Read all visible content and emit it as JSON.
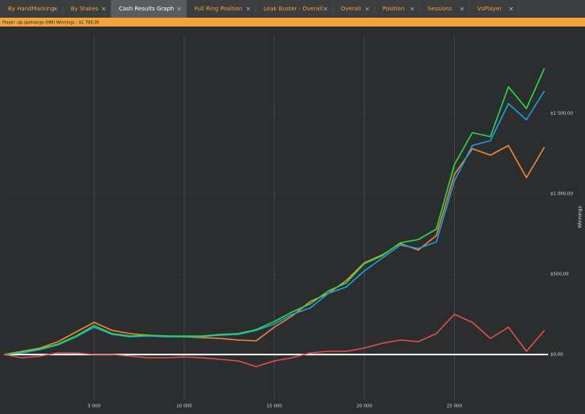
{
  "tabs": [
    "By HandMarking",
    "By Stakes",
    "Cash Results Graph",
    "Full Ring Position",
    "Leak Buster - Overall",
    "Overall",
    "Position",
    "Sessions",
    "VsPlayer"
  ],
  "active_tab": 2,
  "player_bar": {
    "player_label": "Player :",
    "player": "ap.ajamango (HM)",
    "winnings_label": "Winnings :",
    "winnings": "$1 799,36"
  },
  "chart_data": {
    "type": "line",
    "y_label": "Winnings",
    "x": [
      0,
      1000,
      2000,
      3000,
      4000,
      5000,
      6000,
      7000,
      8000,
      9000,
      10000,
      11000,
      12000,
      13000,
      14000,
      15000,
      16000,
      17000,
      18000,
      19000,
      20000,
      21000,
      22000,
      23000,
      24000,
      25000,
      26000,
      27000,
      28000,
      29000,
      30000
    ],
    "series": [
      {
        "color": "#f0883a",
        "values": [
          0,
          20,
          40,
          80,
          140,
          200,
          150,
          130,
          120,
          115,
          110,
          105,
          100,
          90,
          85,
          170,
          240,
          330,
          380,
          460,
          570,
          620,
          690,
          650,
          740,
          1120,
          1280,
          1240,
          1300,
          1100,
          1290
        ]
      },
      {
        "color": "#1f9fd8",
        "values": [
          0,
          10,
          30,
          60,
          110,
          170,
          125,
          110,
          115,
          110,
          110,
          112,
          120,
          125,
          150,
          190,
          250,
          290,
          380,
          420,
          520,
          600,
          680,
          660,
          700,
          1080,
          1300,
          1330,
          1560,
          1460,
          1640
        ]
      },
      {
        "color": "#2bd94a",
        "values": [
          0,
          15,
          35,
          65,
          115,
          180,
          130,
          115,
          120,
          115,
          115,
          115,
          125,
          130,
          155,
          205,
          265,
          315,
          395,
          445,
          565,
          615,
          695,
          715,
          780,
          1180,
          1380,
          1355,
          1665,
          1530,
          1780
        ]
      },
      {
        "color": "#e0504e",
        "values": [
          0,
          -20,
          -10,
          10,
          10,
          0,
          0,
          -10,
          -20,
          -20,
          -15,
          -20,
          -30,
          -40,
          -75,
          -40,
          -20,
          10,
          20,
          20,
          40,
          70,
          90,
          80,
          130,
          250,
          200,
          100,
          170,
          20,
          150
        ]
      }
    ],
    "xlim": [
      0,
      30200
    ],
    "ylim": [
      -280,
      1980
    ],
    "xticks": [
      {
        "value": 5000,
        "label": "5 000"
      },
      {
        "value": 10000,
        "label": "10 000"
      },
      {
        "value": 15000,
        "label": "15 000"
      },
      {
        "value": 20000,
        "label": "20 000"
      },
      {
        "value": 25000,
        "label": "25 000"
      }
    ],
    "yticks": [
      {
        "value": 0,
        "label": "$0,00"
      },
      {
        "value": 500,
        "label": "$500,00"
      },
      {
        "value": 1000,
        "label": "$1 000,00"
      },
      {
        "value": 1500,
        "label": "$1 500,00"
      }
    ],
    "grid": true
  }
}
